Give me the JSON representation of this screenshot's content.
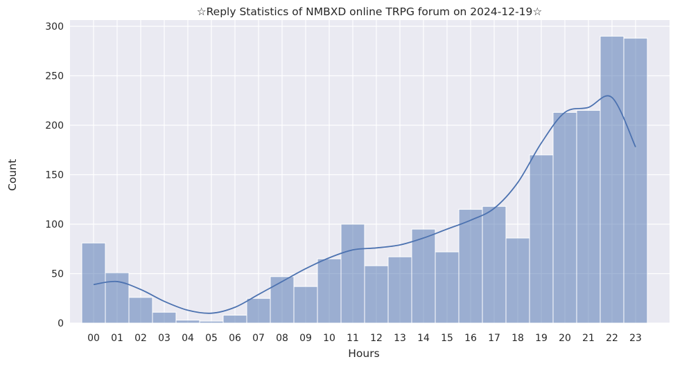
{
  "chart_data": {
    "type": "bar",
    "title": "☆Reply Statistics of NMBXD online TRPG forum on 2024-12-19☆",
    "xlabel": "Hours",
    "ylabel": "Count",
    "categories": [
      "00",
      "01",
      "02",
      "03",
      "04",
      "05",
      "06",
      "07",
      "08",
      "09",
      "10",
      "11",
      "12",
      "13",
      "14",
      "15",
      "16",
      "17",
      "18",
      "19",
      "20",
      "21",
      "22",
      "23"
    ],
    "values": [
      81,
      51,
      26,
      11,
      3,
      2,
      8,
      25,
      47,
      37,
      65,
      100,
      58,
      67,
      95,
      72,
      115,
      118,
      86,
      170,
      213,
      215,
      290,
      288
    ],
    "kde": [
      39,
      42,
      34,
      22,
      13,
      10,
      16,
      29,
      42,
      55,
      66,
      74,
      76,
      79,
      86,
      95,
      104,
      116,
      142,
      182,
      213,
      218,
      228,
      178
    ],
    "ylim": [
      0,
      300
    ],
    "yticks": [
      0,
      50,
      100,
      150,
      200,
      250,
      300
    ],
    "grid": true,
    "bar_color": "#4c72b0",
    "bar_opacity": 0.5,
    "line_color": "#4c72b0",
    "background": "#eaeaf2"
  }
}
